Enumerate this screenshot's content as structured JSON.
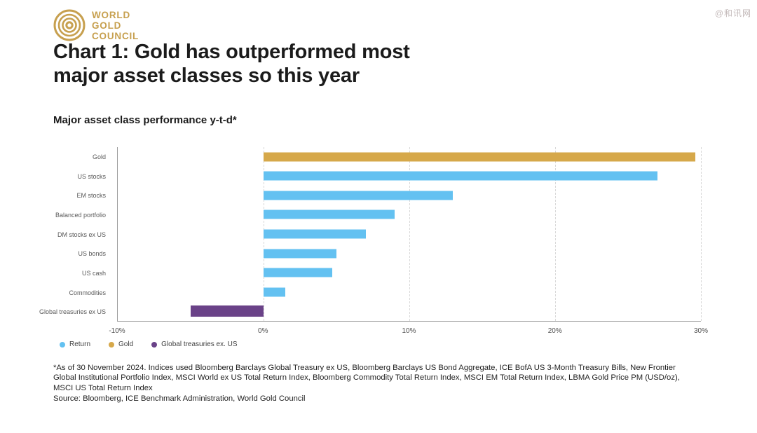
{
  "watermark": "@和讯网",
  "logo": {
    "line1": "WORLD",
    "line2": "GOLD",
    "line3": "COUNCIL",
    "color": "#C7A04F"
  },
  "title": {
    "line1": "Chart 1: Gold has outperformed most",
    "line2": "major asset classes so this year"
  },
  "subtitle": "Major asset class performance y-t-d*",
  "chart_data": {
    "type": "bar",
    "orientation": "horizontal",
    "title": "Major asset class performance y-t-d*",
    "xlabel": "",
    "ylabel": "",
    "xlim": [
      -10,
      30
    ],
    "grid_values": [
      0,
      10,
      20,
      30
    ],
    "grid": "vertical-dashed",
    "x_ticks": [
      {
        "value": -10,
        "label": "-10%"
      },
      {
        "value": 0,
        "label": "0%"
      },
      {
        "value": 10,
        "label": "10%"
      },
      {
        "value": 20,
        "label": "20%"
      },
      {
        "value": 30,
        "label": "30%"
      }
    ],
    "categories": [
      "Gold",
      "US stocks",
      "EM stocks",
      "Balanced portfolio",
      "DM stocks ex US",
      "US bonds",
      "US cash",
      "Commodities",
      "Global treasuries ex US"
    ],
    "points": [
      {
        "label": "Gold",
        "value": 29.6,
        "series": "gold"
      },
      {
        "label": "US stocks",
        "value": 27.0,
        "series": "return"
      },
      {
        "label": "EM stocks",
        "value": 13.0,
        "series": "return"
      },
      {
        "label": "Balanced portfolio",
        "value": 9.0,
        "series": "return"
      },
      {
        "label": "DM stocks ex US",
        "value": 7.0,
        "series": "return"
      },
      {
        "label": "US bonds",
        "value": 5.0,
        "series": "return"
      },
      {
        "label": "US cash",
        "value": 4.7,
        "series": "return"
      },
      {
        "label": "Commodities",
        "value": 1.5,
        "series": "return"
      },
      {
        "label": "Global treasuries ex US",
        "value": -5.0,
        "series": "treasuries"
      }
    ],
    "series_colors": {
      "return": "#63C1F1",
      "gold": "#D6A84A",
      "treasuries": "#6A4288"
    },
    "legend_position": "bottom-left",
    "legend": [
      {
        "label": "Return",
        "series": "return"
      },
      {
        "label": "Gold",
        "series": "gold"
      },
      {
        "label": "Global treasuries ex. US",
        "series": "treasuries"
      }
    ]
  },
  "footnote": {
    "text": "*As of 30 November 2024. Indices used Bloomberg Barclays Global Treasury ex US, Bloomberg Barclays US Bond Aggregate, ICE BofA US 3-Month Treasury Bills, New Frontier Global Institutional Portfolio Index, MSCI World ex US Total Return Index, Bloomberg Commodity Total Return Index, MSCI EM Total Return Index, LBMA Gold Price PM (USD/oz), MSCI US Total Return Index",
    "source": "Source: Bloomberg, ICE Benchmark Administration, World Gold Council"
  }
}
